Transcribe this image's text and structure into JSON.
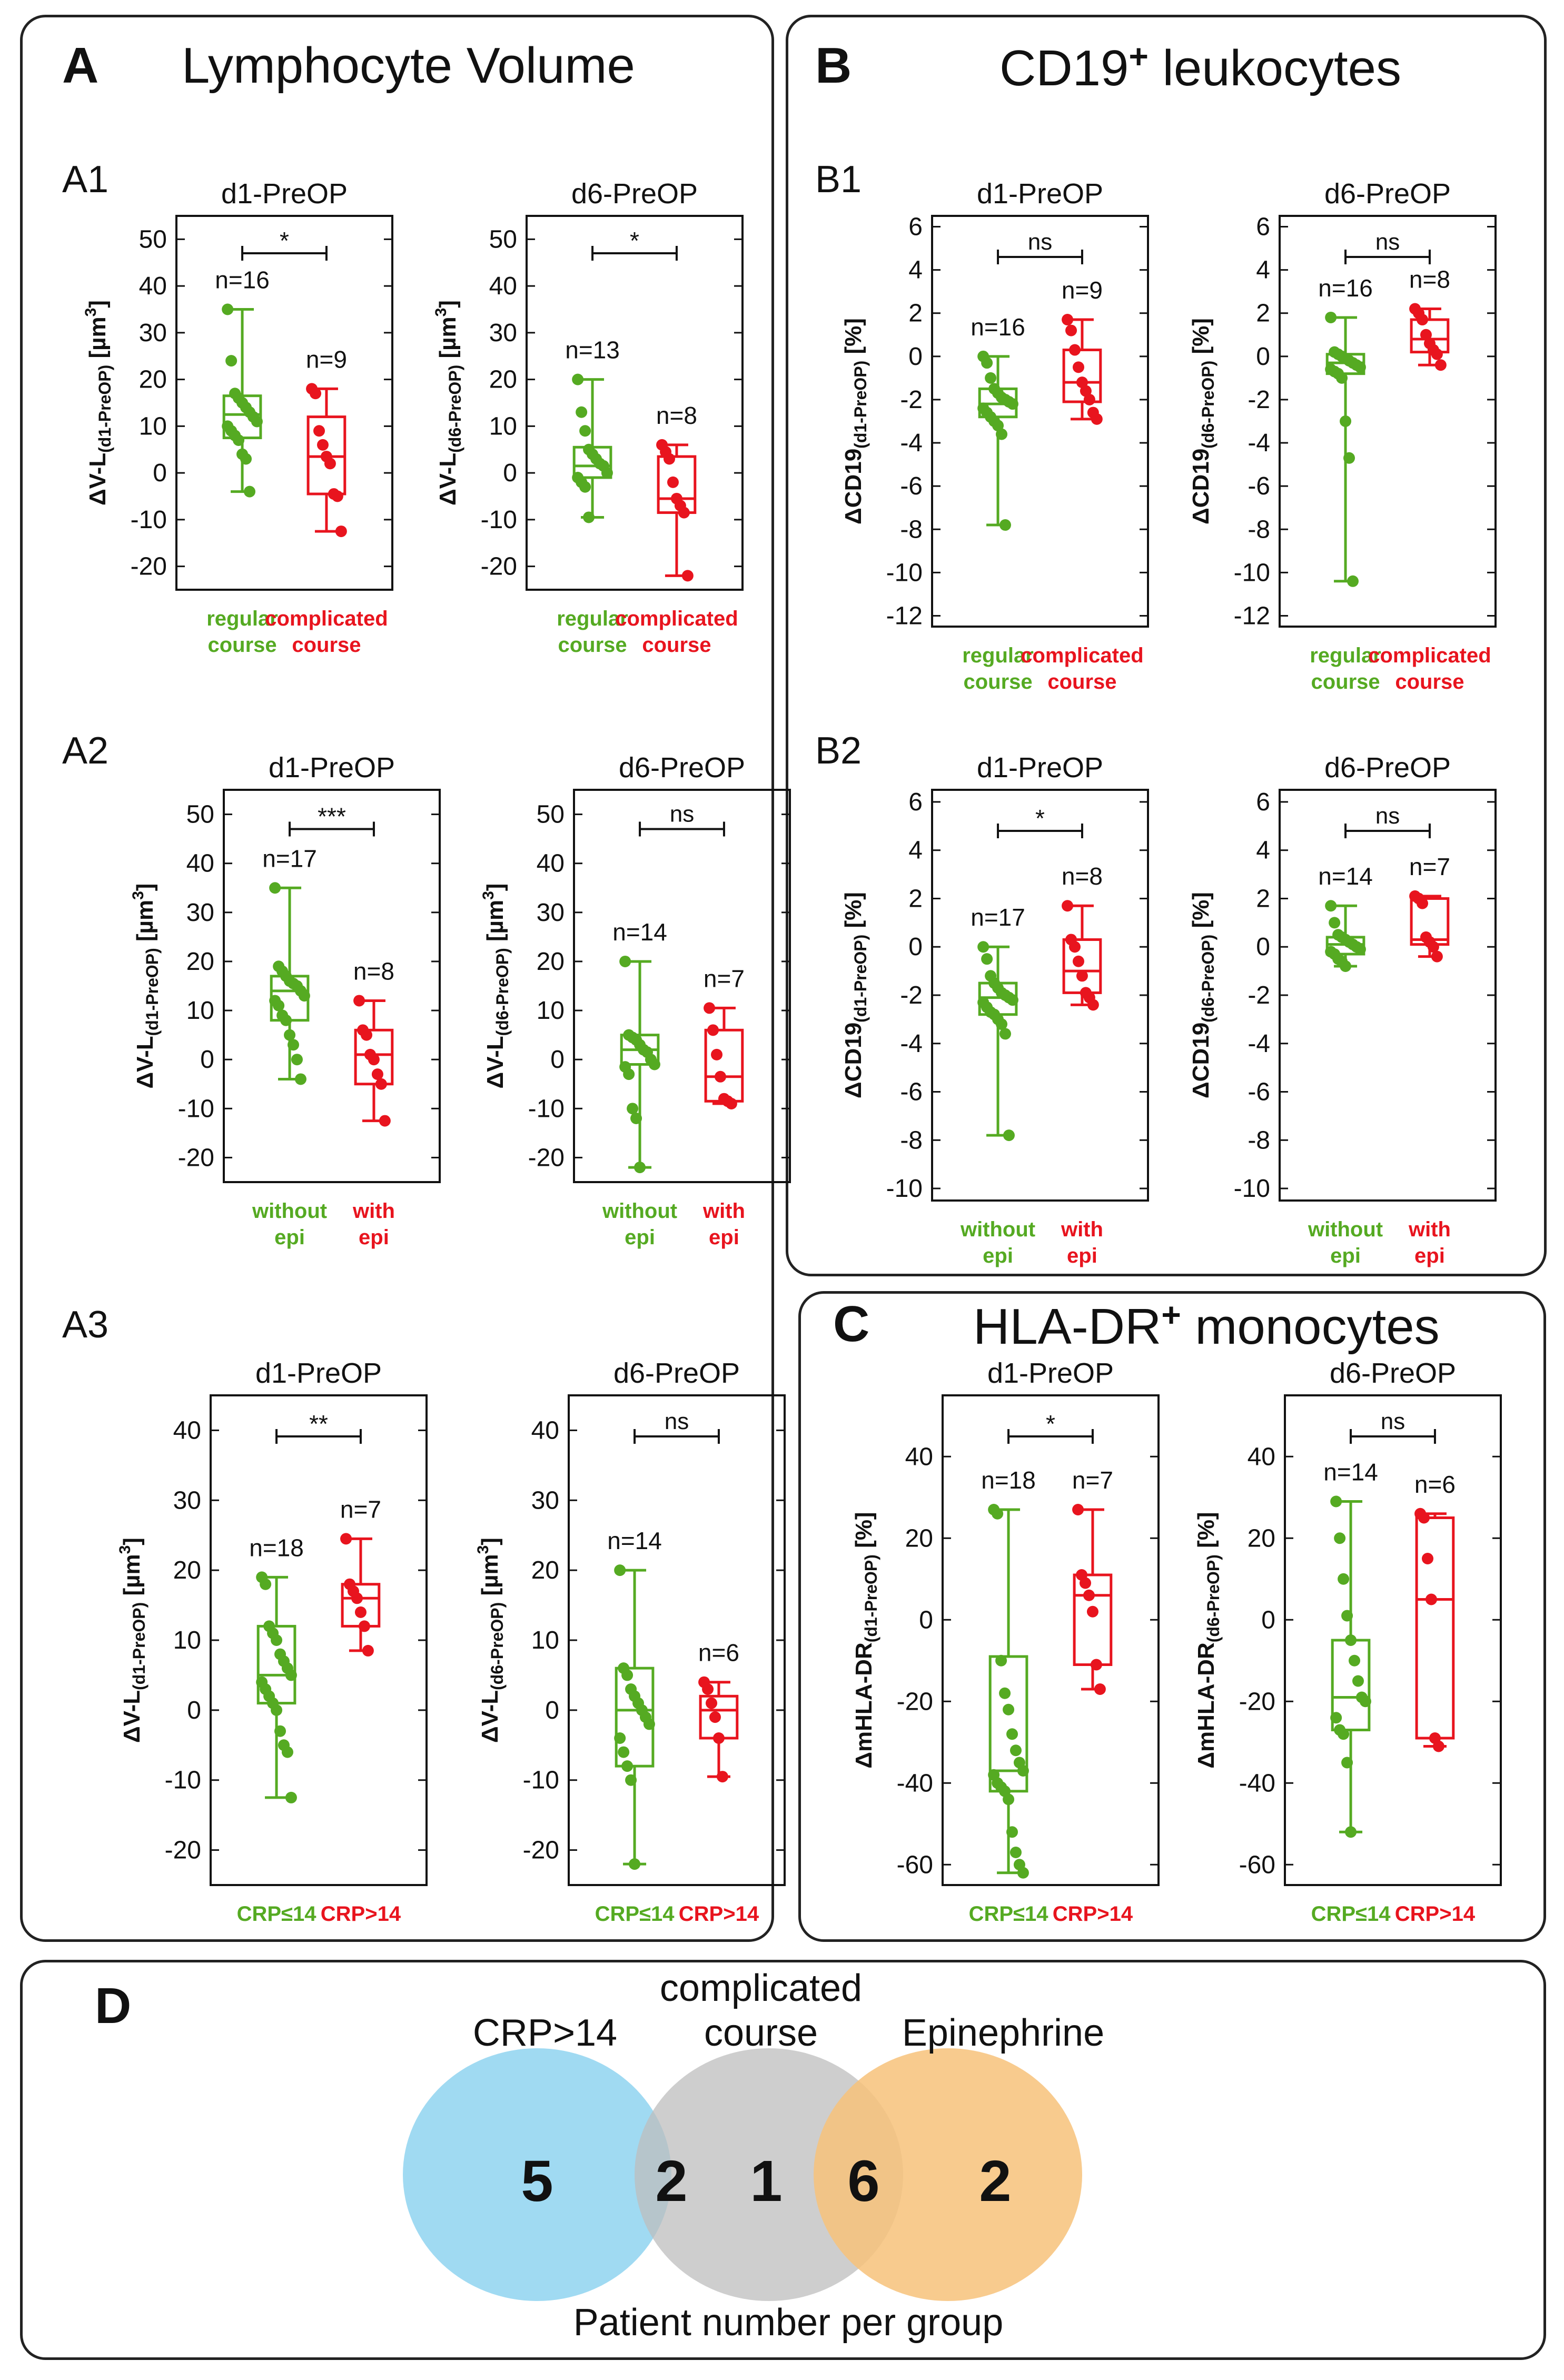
{
  "panels": {
    "A": {
      "letter": "A",
      "title": "Lymphocyte Volume"
    },
    "B": {
      "letter": "B",
      "title": "CD19",
      "title_sup": "+",
      "title_rest": " leukocytes"
    },
    "C": {
      "letter": "C",
      "title": "HLA-DR",
      "title_sup": "+",
      "title_rest": " monocytes"
    },
    "D": {
      "letter": "D"
    }
  },
  "subpanels": {
    "A1": "A1",
    "A2": "A2",
    "A3": "A3",
    "B1": "B1",
    "B2": "B2"
  },
  "colors": {
    "green": "#55aa22",
    "red": "#e8141e",
    "blue": "#8fd3f0",
    "gray": "#bdbdbd",
    "orange": "#f7c27a"
  },
  "chart_data": [
    {
      "id": "A1a",
      "type": "box",
      "title": "d1-PreOP",
      "ylabel": "ΔV-L",
      "ylabel_sub": "(d1-PreOP)",
      "ylabel_unit": " [µm",
      "ylabel_sup": "3",
      "ylabel_end": "]",
      "ylim": [
        -25,
        55
      ],
      "yticks": [
        -20,
        -10,
        0,
        10,
        20,
        30,
        40,
        50
      ],
      "sig": "*",
      "groups": [
        {
          "label1": "regular",
          "label2": "course",
          "n": "n=16",
          "color": "green",
          "min": -4,
          "q1": 7.5,
          "median": 12.5,
          "q3": 16.5,
          "max": 35,
          "points": [
            35,
            24,
            17,
            16,
            15,
            14,
            13,
            12,
            11,
            10,
            9,
            8,
            7,
            4,
            3,
            -4
          ]
        },
        {
          "label1": "complicated",
          "label2": "course",
          "n": "n=9",
          "color": "red",
          "min": -12.5,
          "q1": -4.5,
          "median": 3.5,
          "q3": 12,
          "max": 18,
          "points": [
            18,
            17,
            9,
            6,
            3.5,
            2,
            -4.5,
            -5,
            -12.5
          ]
        }
      ]
    },
    {
      "id": "A1b",
      "type": "box",
      "title": "d6-PreOP",
      "ylabel": "ΔV-L",
      "ylabel_sub": "(d6-PreOP)",
      "ylabel_unit": " [µm",
      "ylabel_sup": "3",
      "ylabel_end": "]",
      "ylim": [
        -25,
        55
      ],
      "yticks": [
        -20,
        -10,
        0,
        10,
        20,
        30,
        40,
        50
      ],
      "sig": "*",
      "groups": [
        {
          "label1": "regular",
          "label2": "course",
          "n": "n=13",
          "color": "green",
          "min": -9.5,
          "q1": -1,
          "median": 1.5,
          "q3": 5.5,
          "max": 20,
          "points": [
            20,
            13,
            9,
            5,
            4,
            3,
            2,
            1.5,
            0,
            -1,
            -2,
            -3,
            -9.5
          ]
        },
        {
          "label1": "complicated",
          "label2": "course",
          "n": "n=8",
          "color": "red",
          "min": -22,
          "q1": -8.5,
          "median": -5.5,
          "q3": 3.5,
          "max": 6,
          "points": [
            6,
            4.5,
            3,
            -2,
            -5.5,
            -7,
            -8.5,
            -22
          ]
        }
      ]
    },
    {
      "id": "A2a",
      "type": "box",
      "title": "d1-PreOP",
      "ylabel": "ΔV-L",
      "ylabel_sub": "(d1-PreOP)",
      "ylabel_unit": " [µm",
      "ylabel_sup": "3",
      "ylabel_end": "]",
      "ylim": [
        -25,
        55
      ],
      "yticks": [
        -20,
        -10,
        0,
        10,
        20,
        30,
        40,
        50
      ],
      "sig": "***",
      "groups": [
        {
          "label1": "without",
          "label2": "epi",
          "n": "n=17",
          "color": "green",
          "min": -4,
          "q1": 8,
          "median": 14,
          "q3": 17,
          "max": 35,
          "points": [
            35,
            19,
            18,
            17,
            16,
            15.5,
            15,
            14,
            13,
            12,
            11,
            9,
            8,
            5,
            3,
            0,
            -4
          ]
        },
        {
          "label1": "with",
          "label2": "epi",
          "n": "n=8",
          "color": "red",
          "min": -12.5,
          "q1": -5,
          "median": 1,
          "q3": 6,
          "max": 12,
          "points": [
            12,
            6,
            5,
            1,
            0,
            -3,
            -5,
            -12.5
          ]
        }
      ]
    },
    {
      "id": "A2b",
      "type": "box",
      "title": "d6-PreOP",
      "ylabel": "ΔV-L",
      "ylabel_sub": "(d6-PreOP)",
      "ylabel_unit": " [µm",
      "ylabel_sup": "3",
      "ylabel_end": "]",
      "ylim": [
        -25,
        55
      ],
      "yticks": [
        -20,
        -10,
        0,
        10,
        20,
        30,
        40,
        50
      ],
      "sig": "ns",
      "groups": [
        {
          "label1": "without",
          "label2": "epi",
          "n": "n=14",
          "color": "green",
          "min": -22,
          "q1": -1,
          "median": 2,
          "q3": 5,
          "max": 20,
          "points": [
            20,
            5,
            4.5,
            4,
            3,
            2,
            1.5,
            0,
            -1,
            -1.5,
            -3,
            -10,
            -12,
            -22
          ]
        },
        {
          "label1": "with",
          "label2": "epi",
          "n": "n=7",
          "color": "red",
          "min": -9,
          "q1": -8.5,
          "median": -3.5,
          "q3": 6,
          "max": 10.5,
          "points": [
            10.5,
            6,
            1,
            -3.5,
            -8,
            -8.5,
            -9
          ]
        }
      ]
    },
    {
      "id": "A3a",
      "type": "box",
      "title": "d1-PreOP",
      "ylabel": "ΔV-L",
      "ylabel_sub": "(d1-PreOP)",
      "ylabel_unit": " [µm",
      "ylabel_sup": "3",
      "ylabel_end": "]",
      "ylim": [
        -25,
        45
      ],
      "yticks": [
        -20,
        -10,
        0,
        10,
        20,
        30,
        40
      ],
      "sig": "**",
      "groups": [
        {
          "label1": "CRP≤14",
          "label2": "",
          "n": "n=18",
          "color": "green",
          "min": -12.5,
          "q1": 1,
          "median": 5,
          "q3": 12,
          "max": 19,
          "points": [
            19,
            18,
            12,
            11,
            10,
            8,
            7,
            6,
            5,
            4,
            3,
            2,
            1,
            0,
            -3,
            -5,
            -6,
            -12.5
          ]
        },
        {
          "label1": "CRP>14",
          "label2": "",
          "n": "n=7",
          "color": "red",
          "min": 8.5,
          "q1": 12,
          "median": 16,
          "q3": 18,
          "max": 24.5,
          "points": [
            24.5,
            18,
            17,
            16,
            14,
            12,
            8.5
          ]
        }
      ]
    },
    {
      "id": "A3b",
      "type": "box",
      "title": "d6-PreOP",
      "ylabel": "ΔV-L",
      "ylabel_sub": "(d6-PreOP)",
      "ylabel_unit": " [µm",
      "ylabel_sup": "3",
      "ylabel_end": "]",
      "ylim": [
        -25,
        45
      ],
      "yticks": [
        -20,
        -10,
        0,
        10,
        20,
        30,
        40
      ],
      "sig": "ns",
      "groups": [
        {
          "label1": "CRP≤14",
          "label2": "",
          "n": "n=14",
          "color": "green",
          "min": -22,
          "q1": -8,
          "median": 0,
          "q3": 6,
          "max": 20,
          "points": [
            20,
            6,
            5,
            3,
            2,
            1,
            0,
            -1,
            -2,
            -4,
            -6,
            -8,
            -10,
            -22
          ]
        },
        {
          "label1": "CRP>14",
          "label2": "",
          "n": "n=6",
          "color": "red",
          "min": -9.5,
          "q1": -4,
          "median": 0,
          "q3": 2,
          "max": 4,
          "points": [
            4,
            3,
            1,
            -1,
            -4,
            -9.5
          ]
        }
      ]
    },
    {
      "id": "B1a",
      "type": "box",
      "title": "d1-PreOP",
      "ylabel": "ΔCD19",
      "ylabel_sub": "(d1-PreOP)",
      "ylabel_unit": " [%]",
      "ylabel_sup": "",
      "ylabel_end": "",
      "ylim": [
        -12.5,
        6.5
      ],
      "yticks": [
        -12,
        -10,
        -8,
        -6,
        -4,
        -2,
        0,
        2,
        4,
        6
      ],
      "sig": "ns",
      "groups": [
        {
          "label1": "regular",
          "label2": "course",
          "n": "n=16",
          "color": "green",
          "min": -7.8,
          "q1": -2.8,
          "median": -2.2,
          "q3": -1.5,
          "max": 0,
          "points": [
            0,
            -0.3,
            -1,
            -1.5,
            -1.7,
            -1.9,
            -2,
            -2.1,
            -2.2,
            -2.4,
            -2.6,
            -2.8,
            -3,
            -3.2,
            -3.6,
            -7.8
          ]
        },
        {
          "label1": "complicated",
          "label2": "course",
          "n": "n=9",
          "color": "red",
          "min": -2.9,
          "q1": -2.1,
          "median": -1.2,
          "q3": 0.3,
          "max": 1.7,
          "points": [
            1.7,
            1.2,
            0.3,
            -0.5,
            -1.2,
            -1.6,
            -2,
            -2.6,
            -2.9
          ]
        }
      ]
    },
    {
      "id": "B1b",
      "type": "box",
      "title": "d6-PreOP",
      "ylabel": "ΔCD19",
      "ylabel_sub": "(d6-PreOP)",
      "ylabel_unit": " [%]",
      "ylabel_sup": "",
      "ylabel_end": "",
      "ylim": [
        -12.5,
        6.5
      ],
      "yticks": [
        -12,
        -10,
        -8,
        -6,
        -4,
        -2,
        0,
        2,
        4,
        6
      ],
      "sig": "ns",
      "groups": [
        {
          "label1": "regular",
          "label2": "course",
          "n": "n=16",
          "color": "green",
          "min": -10.4,
          "q1": -0.8,
          "median": -0.3,
          "q3": 0.1,
          "max": 1.8,
          "points": [
            1.8,
            0.2,
            0.1,
            0,
            -0.1,
            -0.2,
            -0.3,
            -0.4,
            -0.5,
            -0.6,
            -0.7,
            -0.8,
            -1,
            -3,
            -4.7,
            -10.4
          ]
        },
        {
          "label1": "complicated",
          "label2": "course",
          "n": "n=8",
          "color": "red",
          "min": -0.4,
          "q1": 0.2,
          "median": 0.8,
          "q3": 1.7,
          "max": 2.2,
          "points": [
            2.2,
            2,
            1.7,
            1,
            0.6,
            0.3,
            0.1,
            -0.4
          ]
        }
      ]
    },
    {
      "id": "B2a",
      "type": "box",
      "title": "d1-PreOP",
      "ylabel": "ΔCD19",
      "ylabel_sub": "(d1-PreOP)",
      "ylabel_unit": " [%]",
      "ylabel_sup": "",
      "ylabel_end": "",
      "ylim": [
        -10.5,
        6.5
      ],
      "yticks": [
        -10,
        -8,
        -6,
        -4,
        -2,
        0,
        2,
        4,
        6
      ],
      "sig": "*",
      "groups": [
        {
          "label1": "without",
          "label2": "epi",
          "n": "n=17",
          "color": "green",
          "min": -7.8,
          "q1": -2.8,
          "median": -2.1,
          "q3": -1.5,
          "max": 0,
          "points": [
            0,
            -0.5,
            -1.2,
            -1.5,
            -1.7,
            -1.9,
            -2,
            -2.1,
            -2.2,
            -2.3,
            -2.5,
            -2.7,
            -2.8,
            -3,
            -3.2,
            -3.6,
            -7.8
          ]
        },
        {
          "label1": "with",
          "label2": "epi",
          "n": "n=8",
          "color": "red",
          "min": -2.4,
          "q1": -1.9,
          "median": -1,
          "q3": 0.3,
          "max": 1.7,
          "points": [
            1.7,
            0.3,
            0,
            -0.6,
            -1.2,
            -1.9,
            -2.1,
            -2.4
          ]
        }
      ]
    },
    {
      "id": "B2b",
      "type": "box",
      "title": "d6-PreOP",
      "ylabel": "ΔCD19",
      "ylabel_sub": "(d6-PreOP)",
      "ylabel_unit": " [%]",
      "ylabel_sup": "",
      "ylabel_end": "",
      "ylim": [
        -10.5,
        6.5
      ],
      "yticks": [
        -10,
        -8,
        -6,
        -4,
        -2,
        0,
        2,
        4,
        6
      ],
      "sig": "ns",
      "groups": [
        {
          "label1": "without",
          "label2": "epi",
          "n": "n=14",
          "color": "green",
          "min": -0.8,
          "q1": -0.3,
          "median": 0.1,
          "q3": 0.4,
          "max": 1.7,
          "points": [
            1.7,
            1,
            0.5,
            0.4,
            0.3,
            0.2,
            0.1,
            0,
            -0.1,
            -0.2,
            -0.3,
            -0.5,
            -0.6,
            -0.8
          ]
        },
        {
          "label1": "with",
          "label2": "epi",
          "n": "n=7",
          "color": "red",
          "min": -0.4,
          "q1": 0.1,
          "median": 0.3,
          "q3": 2,
          "max": 2.1,
          "points": [
            2.1,
            2,
            1.8,
            0.4,
            0.2,
            0,
            -0.4
          ]
        }
      ]
    },
    {
      "id": "Ca",
      "type": "box",
      "title": "d1-PreOP",
      "ylabel": "ΔmHLA-DR",
      "ylabel_sub": "(d1-PreOP)",
      "ylabel_unit": " [%]",
      "ylabel_sup": "",
      "ylabel_end": "",
      "ylim": [
        -65,
        55
      ],
      "yticks": [
        -60,
        -40,
        -20,
        0,
        20,
        40
      ],
      "sig": "*",
      "groups": [
        {
          "label1": "CRP≤14",
          "label2": "",
          "n": "n=18",
          "color": "green",
          "min": -62,
          "q1": -42,
          "median": -37,
          "q3": -9,
          "max": 27,
          "points": [
            27,
            26,
            -10,
            -18,
            -22,
            -28,
            -32,
            -35,
            -37,
            -38,
            -40,
            -41,
            -42,
            -44,
            -52,
            -57,
            -60,
            -62
          ]
        },
        {
          "label1": "CRP>14",
          "label2": "",
          "n": "n=7",
          "color": "red",
          "min": -17,
          "q1": -11,
          "median": 6,
          "q3": 11,
          "max": 27,
          "points": [
            27,
            11,
            9,
            6,
            2,
            -11,
            -17
          ]
        }
      ]
    },
    {
      "id": "Cb",
      "type": "box",
      "title": "d6-PreOP",
      "ylabel": "ΔmHLA-DR",
      "ylabel_sub": "(d6-PreOP)",
      "ylabel_unit": " [%]",
      "ylabel_sup": "",
      "ylabel_end": "",
      "ylim": [
        -65,
        55
      ],
      "yticks": [
        -60,
        -40,
        -20,
        0,
        20,
        40
      ],
      "sig": "ns",
      "groups": [
        {
          "label1": "CRP≤14",
          "label2": "",
          "n": "n=14",
          "color": "green",
          "min": -52,
          "q1": -27,
          "median": -19,
          "q3": -5,
          "max": 29,
          "points": [
            29,
            20,
            10,
            1,
            -5,
            -10,
            -15,
            -19,
            -20,
            -24,
            -27,
            -28,
            -35,
            -52
          ]
        },
        {
          "label1": "CRP>14",
          "label2": "",
          "n": "n=6",
          "color": "red",
          "min": -31,
          "q1": -29,
          "median": 5,
          "q3": 25,
          "max": 26,
          "points": [
            26,
            25,
            15,
            5,
            -29,
            -31
          ]
        }
      ]
    }
  ],
  "venn": {
    "labels": {
      "crp": "CRP>14",
      "comp1": "complicated",
      "comp2": "course",
      "epi": "Epinephrine"
    },
    "counts": {
      "crp_only": "5",
      "crp_comp": "2",
      "comp_only": "1",
      "comp_epi": "6",
      "epi_only": "2"
    },
    "caption": "Patient number per group"
  }
}
